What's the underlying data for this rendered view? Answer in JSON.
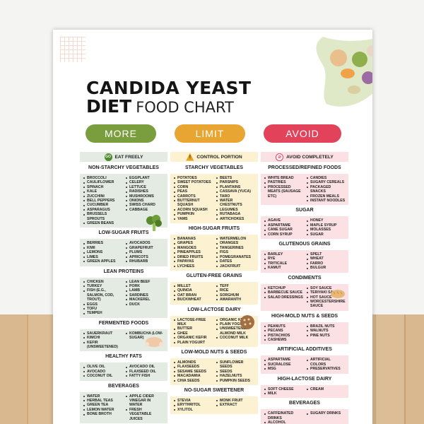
{
  "title": {
    "line1": "CANDIDA YEAST",
    "line2_bold": "DIET",
    "line2_light": "FOOD CHART"
  },
  "colors": {
    "more": "#7a9e3d",
    "limit": "#e8a531",
    "avoid": "#e2435b"
  },
  "columns": {
    "more": {
      "pill": "MORE",
      "header": "EAT FREELY",
      "header_icon": "GO",
      "sections": [
        {
          "title": "NON-STARCHY VEGETABLES",
          "left": [
            "BROCCOLI",
            "CAULIFLOWER",
            "SPINACH",
            "KALE",
            "ZUCCHINI",
            "BELL PEPPERS",
            "CUCUMBER",
            "ASPARAGUS",
            "BRUSSELS SPROUTS",
            "GREEN BEANS"
          ],
          "right": [
            "EGGPLANT",
            "CELERY",
            "LETTUCE",
            "RADISHES",
            "MUSHROOMS",
            "ONIONS",
            "SWISS CHARD",
            "CABBAGE"
          ]
        },
        {
          "title": "LOW-SUGAR FRUITS",
          "left": [
            "BERRIES",
            "KIWI",
            "LEMONS",
            "LIMES",
            "GREEN APPLES"
          ],
          "right": [
            "AVOCADOS",
            "GRAPEFRUIT",
            "PLUMS",
            "APRICOTS",
            "RHUBARB"
          ]
        },
        {
          "title": "LEAN PROTEINS",
          "left": [
            "CHICKEN",
            "TURKEY",
            "FISH (E.G., SALMON, COD, TROUT)",
            "EGGS",
            "TOFU",
            "TEMPEH"
          ],
          "right": [
            "LEAN BEEF",
            "PORK",
            "LAMB",
            "SARDINES",
            "MACKEREL",
            "DUCK"
          ]
        },
        {
          "title": "FERMENTED FOODS",
          "left": [
            "SAUERKRAUT",
            "KIMCHI",
            "KEFIR (UNSWEETENED)"
          ],
          "right": [
            "KOMBUCHA (LOW-SUGAR)"
          ]
        },
        {
          "title": "HEALTHY FATS",
          "left": [
            "OLIVE OIL",
            "AVOCADO",
            "COCONUT OIL"
          ],
          "right": [
            "AVOCADO OIL",
            "FLAXSEED OIL",
            "FATTY FISH"
          ]
        },
        {
          "title": "BEVERAGES",
          "left": [
            "WATER",
            "HERBAL TEAS",
            "GREEN TEA",
            "LEMON WATER",
            "BONE BROTH"
          ],
          "right": [
            "APPLE CIDER VINEGAR IN WATER",
            "FRESH VEGETABLE JUICES"
          ]
        }
      ]
    },
    "limit": {
      "pill": "LIMIT",
      "header": "CONTROL PORTION",
      "header_icon": "!",
      "sections": [
        {
          "title": "STARCHY VEGETABLES",
          "left": [
            "POTATOES",
            "SWEET POTATOES",
            "CORN",
            "PEAS",
            "CARROTS",
            "BUTTERNUT SQUASH",
            "ACORN SQUASH",
            "PUMPKIN",
            "YAMS"
          ],
          "right": [
            "BEETS",
            "PARSNIPS",
            "PLANTAINS",
            "CASSAVA (YUCA)",
            "TARO",
            "WATER CHESTNUTS",
            "LEGUMES",
            "RUTABAGA",
            "ARTICHOKES"
          ]
        },
        {
          "title": "HIGH-SUGAR FRUITS",
          "left": [
            "BANANAS",
            "GRAPES",
            "MANGOES",
            "PINEAPPLES",
            "DRIED FRUITS",
            "PAPAYAS",
            "LYCHEES"
          ],
          "right": [
            "WATERMELON",
            "ORANGES",
            "TANGERINES",
            "FIGS",
            "POMEGRANATES",
            "DATES",
            "JACKFRUIT"
          ]
        },
        {
          "title": "GLUTEN-FREE GRAINS",
          "left": [
            "MILLET",
            "QUINOA",
            "OAT BRAN",
            "BUCKWHEAT"
          ],
          "right": [
            "TEFF",
            "RICE",
            "SORGHUM",
            "AMARANTH"
          ]
        },
        {
          "title": "LOW-LACTOSE DAIRY",
          "left": [
            "LACTOSE-FREE MILK",
            "BUTTER",
            "GHEE",
            "ORGANIC KEFIR",
            "PLAIN YOGURT"
          ],
          "right": [
            "ORGANIC KEFIR",
            "PLAIN YOGURT",
            "UNSWEETENED ALMOND MILK",
            "COCONUT MILK"
          ]
        },
        {
          "title": "LOW-MOLD NUTS & SEEDS",
          "left": [
            "ALMONDS",
            "FLAXSEEDS",
            "SESAME SEEDS",
            "MACADAMIA",
            "CHIA SEEDS"
          ],
          "right": [
            "SUNFLOWER SEEDS",
            "SEEDS",
            "HAZELNUTS",
            "PUMPKIN SEEDS"
          ]
        },
        {
          "title": "NO-SUGAR SWEETENER",
          "left": [
            "STEVIA",
            "ERYTHRITOL",
            "XYLITOL"
          ],
          "right": [
            "MONK FRUIT",
            "EXTRACT"
          ]
        }
      ]
    },
    "avoid": {
      "pill": "AVOID",
      "header": "AVOID COMPLETELY",
      "header_icon": "no",
      "sections": [
        {
          "title": "PROCESSED/REFINED FOODS",
          "left": [
            "WHITE BREAD",
            "PASTRIES",
            "PROCESSED MEATS (SAUSAGE ETC)"
          ],
          "right": [
            "CANDIES",
            "SUGARY CEREALS",
            "PACKAGED SNACKS",
            "FROZEN MEALS",
            "INSTANT NOODLES"
          ]
        },
        {
          "title": "SUGAR",
          "left": [
            "AGAVE",
            "ASPARTAME",
            "CANE SUGAR",
            "CORN SYRUP"
          ],
          "right": [
            "HONEY",
            "MAPLE SYRUP",
            "MOLASSES",
            "SUGAR"
          ]
        },
        {
          "title": "GLUTENOUS GRAINS",
          "left": [
            "BARLEY",
            "RYE",
            "TRITICALE",
            "KAMUT"
          ],
          "right": [
            "SPELT",
            "WHEAT",
            "FARRO",
            "BULGUR"
          ]
        },
        {
          "title": "CONDIMENTS",
          "left": [
            "KETCHUP",
            "BARBECUE SAUCE",
            "SALAD DRESSINGS"
          ],
          "right": [
            "SOY SAUCE",
            "TERIYAKI SAUCE",
            "HOT SAUCE",
            "WORCESTERSHIRE SAUCE"
          ]
        },
        {
          "title": "HIGH-MOLD NUTS & SEEDS",
          "left": [
            "PEANUTS",
            "PECANS",
            "PISTACHIOS",
            "CASHEWS"
          ],
          "right": [
            "BRAZIL NUTS",
            "WALNUTS",
            "PINE NUTS"
          ]
        },
        {
          "title": "ARTIFICIAL ADDITIVES",
          "left": [
            "ASPARTAME",
            "SUCRALOSE",
            "MSG"
          ],
          "right": [
            "ARTIFICIAL COLORS",
            "PRESERVATIVES"
          ]
        },
        {
          "title": "HIGH-LACTOSE DAIRY",
          "left": [
            "SOFT CHEESE",
            "MILK"
          ],
          "right": [
            "CREAM"
          ]
        },
        {
          "title": "BEVERAGES",
          "left": [
            "CAFFEINATED DRINKS",
            "ALCOHOL"
          ],
          "right": [
            "SUGARY DRINKS"
          ]
        }
      ]
    }
  }
}
